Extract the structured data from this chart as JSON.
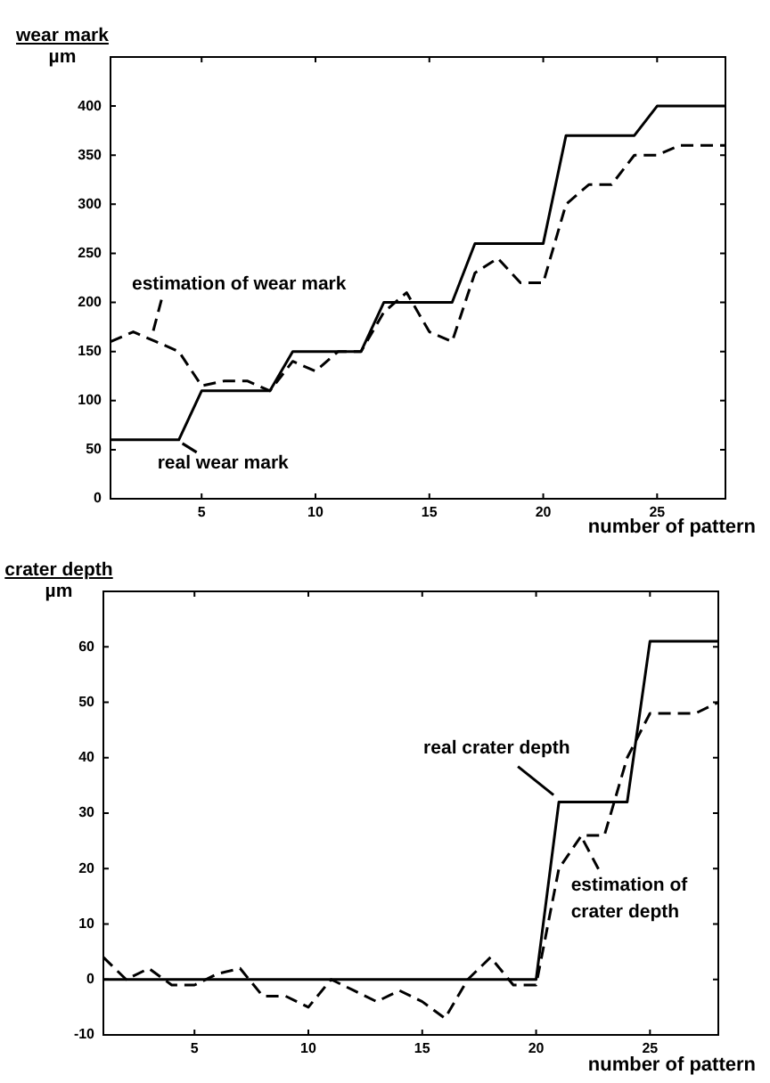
{
  "chart_data": [
    {
      "type": "line",
      "ylabel": "wear mark\nµm",
      "xlabel": "number of pattern",
      "marker": "none",
      "x": [
        1,
        2,
        3,
        4,
        5,
        6,
        7,
        8,
        9,
        10,
        11,
        12,
        13,
        14,
        15,
        16,
        17,
        18,
        19,
        20,
        21,
        22,
        23,
        24,
        25,
        26,
        27,
        28
      ],
      "xlim": [
        1,
        28
      ],
      "xticks": [
        5,
        10,
        15,
        20,
        25
      ],
      "ylim": [
        0,
        450
      ],
      "yticks": [
        0,
        50,
        100,
        150,
        200,
        250,
        300,
        350,
        400
      ],
      "series": [
        {
          "name": "real wear mark",
          "color": "#000000",
          "line_style": "solid",
          "values": [
            60,
            60,
            60,
            60,
            110,
            110,
            110,
            110,
            150,
            150,
            150,
            150,
            200,
            200,
            200,
            200,
            260,
            260,
            260,
            260,
            370,
            370,
            370,
            370,
            400,
            400,
            400,
            400
          ]
        },
        {
          "name": "estimation of wear mark",
          "color": "#000000",
          "line_style": "dashed",
          "values": [
            160,
            170,
            160,
            150,
            115,
            120,
            120,
            110,
            140,
            130,
            150,
            150,
            190,
            210,
            170,
            160,
            230,
            245,
            220,
            220,
            300,
            320,
            320,
            350,
            350,
            360,
            360,
            360
          ]
        }
      ]
    },
    {
      "type": "line",
      "ylabel": "crater depth\nµm",
      "xlabel": "number of pattern",
      "marker": "none",
      "x": [
        1,
        2,
        3,
        4,
        5,
        6,
        7,
        8,
        9,
        10,
        11,
        12,
        13,
        14,
        15,
        16,
        17,
        18,
        19,
        20,
        21,
        22,
        23,
        24,
        25,
        26,
        27,
        28
      ],
      "xlim": [
        1,
        28
      ],
      "xticks": [
        5,
        10,
        15,
        20,
        25
      ],
      "ylim": [
        -10,
        70
      ],
      "yticks": [
        -10,
        0,
        10,
        20,
        30,
        40,
        50,
        60
      ],
      "series": [
        {
          "name": "real crater depth",
          "color": "#000000",
          "line_style": "solid",
          "values": [
            0,
            0,
            0,
            0,
            0,
            0,
            0,
            0,
            0,
            0,
            0,
            0,
            0,
            0,
            0,
            0,
            0,
            0,
            0,
            0,
            32,
            32,
            32,
            32,
            61,
            61,
            61,
            61
          ]
        },
        {
          "name": "estimation of crater depth",
          "color": "#000000",
          "line_style": "dashed",
          "values": [
            4,
            0,
            2,
            -1,
            -1,
            1,
            2,
            -3,
            -3,
            -5,
            0,
            -2,
            -4,
            -2,
            -4,
            -7,
            0,
            4,
            -1,
            -1,
            20,
            26,
            26,
            40,
            48,
            48,
            48,
            50
          ]
        }
      ]
    }
  ]
}
